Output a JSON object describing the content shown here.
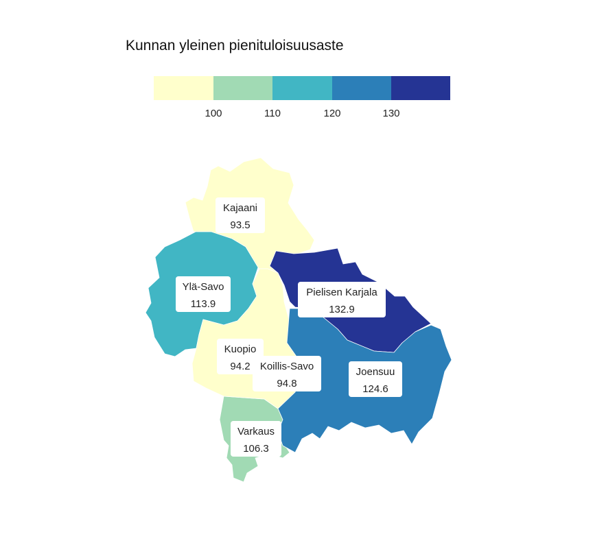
{
  "title": "Kunnan yleinen pienituloisuusaste",
  "legend": {
    "ticks": [
      "100",
      "110",
      "120",
      "130"
    ],
    "bins": [
      {
        "from": null,
        "to": 100,
        "color": "#ffffcc"
      },
      {
        "from": 100,
        "to": 110,
        "color": "#a1dab4"
      },
      {
        "from": 110,
        "to": 120,
        "color": "#41b6c4"
      },
      {
        "from": 120,
        "to": 130,
        "color": "#2c7fb8"
      },
      {
        "from": 130,
        "to": null,
        "color": "#253494"
      }
    ]
  },
  "regions": [
    {
      "id": "kajaani",
      "name": "Kajaani",
      "value": 93.5,
      "value_label": "93.5",
      "color": "#ffffcc"
    },
    {
      "id": "yla-savo",
      "name": "Ylä-Savo",
      "value": 113.9,
      "value_label": "113.9",
      "color": "#41b6c4"
    },
    {
      "id": "pielisen-karjala",
      "name": "Pielisen Karjala",
      "value": 132.9,
      "value_label": "132.9",
      "color": "#253494"
    },
    {
      "id": "kuopio",
      "name": "Kuopio",
      "value": 94.2,
      "value_label": "94.2",
      "color": "#ffffcc"
    },
    {
      "id": "koillis-savo",
      "name": "Koillis-Savo",
      "value": 94.8,
      "value_label": "94.8",
      "color": "#ffffcc"
    },
    {
      "id": "joensuu",
      "name": "Joensuu",
      "value": 124.6,
      "value_label": "124.6",
      "color": "#2c7fb8"
    },
    {
      "id": "varkaus",
      "name": "Varkaus",
      "value": 106.3,
      "value_label": "106.3",
      "color": "#a1dab4"
    }
  ]
}
